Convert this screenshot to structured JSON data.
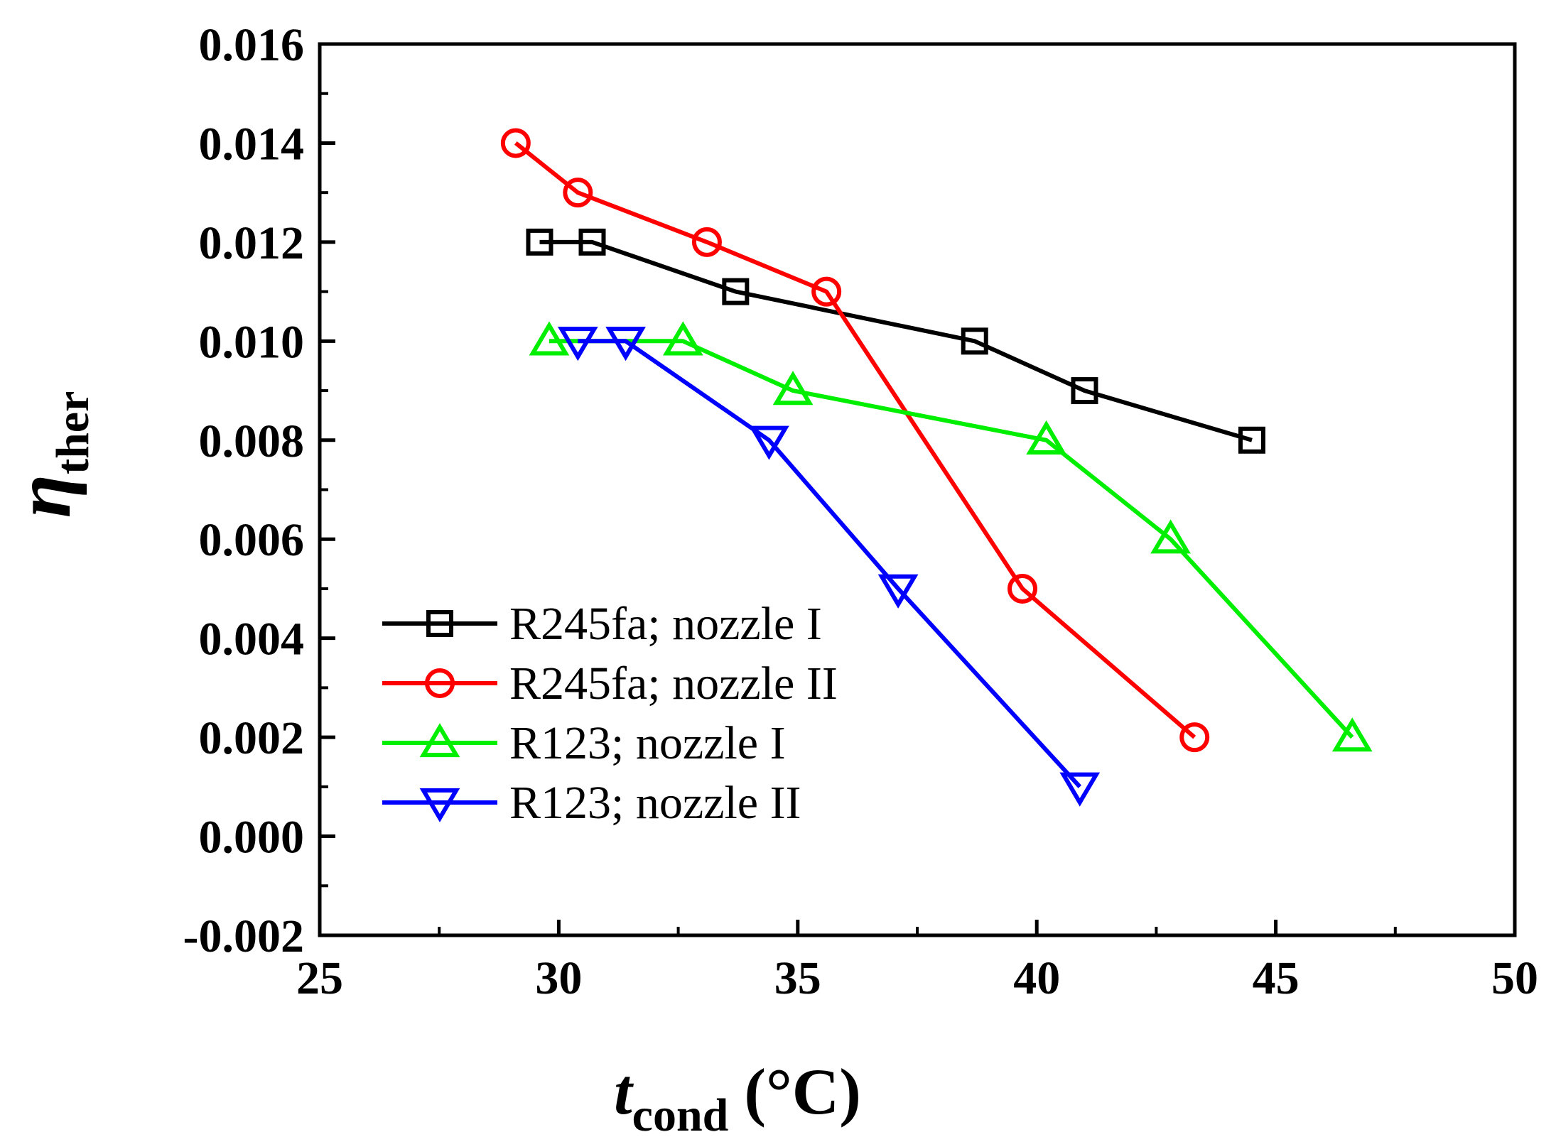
{
  "chart_data": {
    "type": "line",
    "title": "",
    "xlabel": {
      "main": "t",
      "sub": "cond",
      "unit": "(°C)"
    },
    "ylabel": {
      "main": "η",
      "sub": "ther"
    },
    "xlim": [
      25,
      50
    ],
    "ylim": [
      -0.002,
      0.016
    ],
    "xticks": [
      25,
      30,
      35,
      40,
      45,
      50
    ],
    "yticks": [
      -0.002,
      0.0,
      0.002,
      0.004,
      0.006,
      0.008,
      0.01,
      0.012,
      0.014,
      0.016
    ],
    "xtick_labels": [
      "25",
      "30",
      "35",
      "40",
      "45",
      "50"
    ],
    "ytick_labels": [
      "-0.002",
      "0.000",
      "0.002",
      "0.004",
      "0.006",
      "0.008",
      "0.010",
      "0.012",
      "0.014",
      "0.016"
    ],
    "grid": false,
    "legend_position": "lower-left",
    "series": [
      {
        "name": "R245fa; nozzle I",
        "color": "#000000",
        "marker": "square",
        "x": [
          29.6,
          30.7,
          33.7,
          38.7,
          41.0,
          44.5
        ],
        "y": [
          0.012,
          0.012,
          0.011,
          0.01,
          0.009,
          0.008
        ]
      },
      {
        "name": "R245fa; nozzle II",
        "color": "#ff0000",
        "marker": "circle",
        "x": [
          29.1,
          30.4,
          33.1,
          35.6,
          39.7,
          43.3
        ],
        "y": [
          0.014,
          0.013,
          0.012,
          0.011,
          0.005,
          0.002
        ]
      },
      {
        "name": "R123; nozzle I",
        "color": "#00ee00",
        "marker": "triangle-up",
        "x": [
          29.8,
          32.6,
          34.9,
          40.2,
          42.8,
          46.6
        ],
        "y": [
          0.01,
          0.01,
          0.009,
          0.008,
          0.006,
          0.002
        ]
      },
      {
        "name": "R123; nozzle II",
        "color": "#0000ff",
        "marker": "triangle-down",
        "x": [
          30.4,
          31.4,
          34.4,
          37.1,
          40.9
        ],
        "y": [
          0.01,
          0.01,
          0.008,
          0.005,
          0.001
        ]
      }
    ]
  }
}
